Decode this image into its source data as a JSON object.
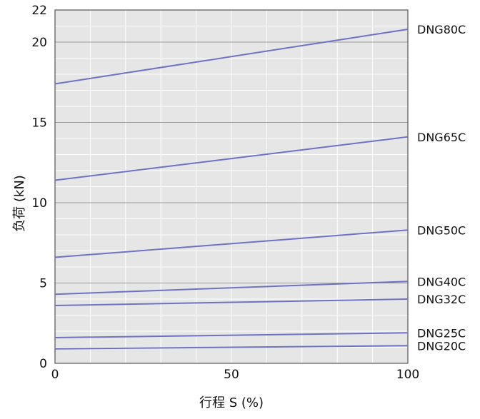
{
  "chart_data": {
    "type": "line",
    "xlabel": "行程 S (%)",
    "ylabel": "负荷 (kN)",
    "xlim": [
      0,
      100
    ],
    "ylim": [
      0,
      22
    ],
    "x_ticks": [
      "0",
      "50",
      "100"
    ],
    "y_ticks": [
      "0",
      "5",
      "10",
      "15",
      "20",
      "22"
    ],
    "grid": true,
    "legend": "labels at right end of lines",
    "line_color": "#6f72c4",
    "series": [
      {
        "name": "DNG80C",
        "x": [
          0,
          100
        ],
        "y": [
          17.4,
          20.8
        ]
      },
      {
        "name": "DNG65C",
        "x": [
          0,
          100
        ],
        "y": [
          11.4,
          14.1
        ]
      },
      {
        "name": "DNG50C",
        "x": [
          0,
          100
        ],
        "y": [
          6.6,
          8.3
        ]
      },
      {
        "name": "DNG40C",
        "x": [
          0,
          100
        ],
        "y": [
          4.3,
          5.1
        ]
      },
      {
        "name": "DNG32C",
        "x": [
          0,
          100
        ],
        "y": [
          3.6,
          4.0
        ]
      },
      {
        "name": "DNG25C",
        "x": [
          0,
          100
        ],
        "y": [
          1.6,
          1.9
        ]
      },
      {
        "name": "DNG20C",
        "x": [
          0,
          100
        ],
        "y": [
          0.9,
          1.1
        ]
      }
    ]
  }
}
